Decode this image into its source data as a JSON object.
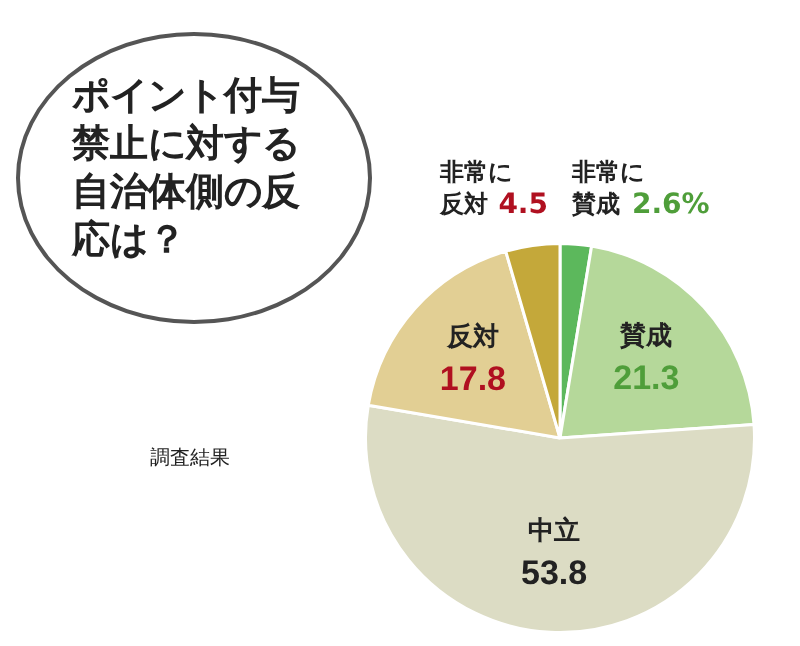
{
  "chart_data": {
    "type": "pie",
    "title": "ポイント付与禁止に対する自治体側の反応は？",
    "categories": [
      "非常に賛成",
      "賛成",
      "中立",
      "反対",
      "非常に反対"
    ],
    "values": [
      2.6,
      21.3,
      53.8,
      17.8,
      4.5
    ],
    "value_labels": [
      "2.6%",
      "21.3",
      "53.8",
      "17.8",
      "4.5"
    ],
    "colors": [
      "#5cb85c",
      "#b5d89a",
      "#dcdcc4",
      "#e2cf94",
      "#c4a83a"
    ],
    "legend": false,
    "annotations": [
      "調査結果"
    ]
  }
}
